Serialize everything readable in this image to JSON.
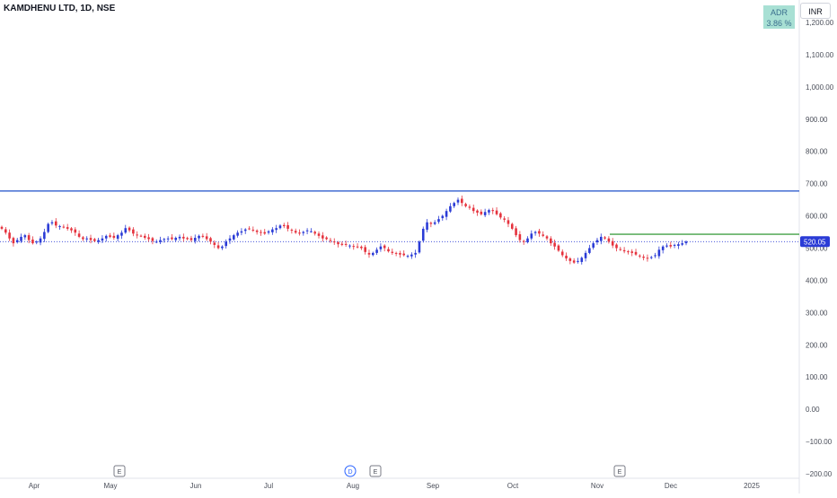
{
  "header": {
    "symbol_title": "KAMDHENU LTD, 1D, NSE",
    "adr_label": "ADR",
    "adr_value": "3.86 %",
    "currency": "INR"
  },
  "price_label": "520.05",
  "colors": {
    "up": "#2a3bd6",
    "down": "#e5323d",
    "resistance_line": "#1e4fc9",
    "target_line": "#43a047",
    "price_line": "#2a3bd6",
    "axis_text": "#4a4e59"
  },
  "events": [
    {
      "label": "E",
      "month": "May",
      "kind": "earnings"
    },
    {
      "label": "D",
      "month": "Aug",
      "kind": "dividend"
    },
    {
      "label": "E",
      "month": "Aug",
      "kind": "earnings"
    },
    {
      "label": "E",
      "month": "Nov",
      "kind": "earnings"
    }
  ],
  "chart_data": {
    "type": "candlestick",
    "title": "KAMDHENU LTD, 1D, NSE",
    "y_ticks": [
      "1,200.00",
      "1,100.00",
      "1,000.00",
      "900.00",
      "800.00",
      "700.00",
      "600.00",
      "500.00",
      "400.00",
      "300.00",
      "200.00",
      "100.00",
      "0.00",
      "−100.00",
      "−200.00"
    ],
    "y_tick_values": [
      1200,
      1100,
      1000,
      900,
      800,
      700,
      600,
      500,
      400,
      300,
      200,
      100,
      0,
      -100,
      -200
    ],
    "x_ticks": [
      "Apr",
      "May",
      "Jun",
      "Jul",
      "Aug",
      "Sep",
      "Oct",
      "Nov",
      "Dec",
      "2025"
    ],
    "ylim": [
      -200,
      1200
    ],
    "last_price": 520.05,
    "horizontal_lines": [
      {
        "name": "resistance",
        "value": 677
      },
      {
        "name": "target",
        "value": 543
      }
    ],
    "closes": [
      560,
      548,
      530,
      515,
      525,
      535,
      540,
      525,
      515,
      520,
      530,
      550,
      575,
      580,
      570,
      568,
      565,
      560,
      555,
      548,
      535,
      528,
      530,
      525,
      522,
      525,
      530,
      538,
      535,
      532,
      540,
      548,
      562,
      555,
      545,
      540,
      538,
      532,
      528,
      522,
      520,
      525,
      528,
      530,
      528,
      532,
      535,
      530,
      528,
      525,
      532,
      538,
      535,
      528,
      520,
      510,
      500,
      505,
      520,
      530,
      540,
      548,
      552,
      558,
      560,
      556,
      550,
      548,
      545,
      552,
      558,
      562,
      570,
      568,
      560,
      555,
      548,
      545,
      550,
      555,
      552,
      545,
      538,
      530,
      528,
      522,
      518,
      512,
      510,
      510,
      508,
      505,
      503,
      500,
      488,
      480,
      485,
      495,
      505,
      500,
      490,
      485,
      483,
      480,
      478,
      476,
      480,
      485,
      520,
      560,
      580,
      575,
      580,
      590,
      600,
      615,
      630,
      640,
      650,
      640,
      630,
      625,
      615,
      610,
      605,
      612,
      618,
      615,
      605,
      595,
      588,
      575,
      560,
      540,
      525,
      520,
      530,
      545,
      550,
      545,
      538,
      530,
      515,
      505,
      492,
      478,
      468,
      460,
      455,
      460,
      470,
      485,
      500,
      515,
      525,
      535,
      530,
      520,
      508,
      500,
      495,
      490,
      488,
      485,
      480,
      475,
      470,
      468,
      472,
      478,
      495,
      505,
      508,
      505,
      510,
      512,
      515,
      520.05
    ]
  }
}
